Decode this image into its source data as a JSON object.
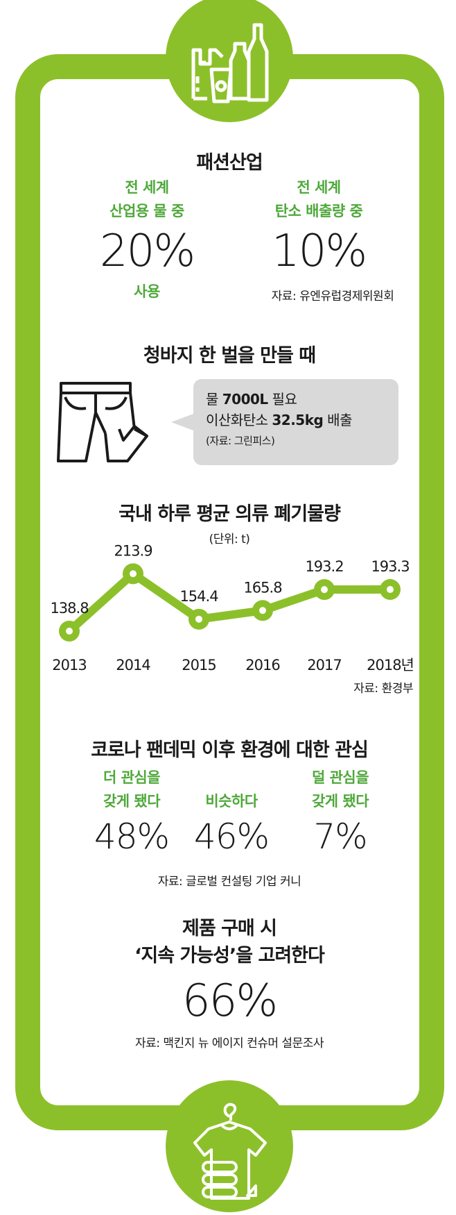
{
  "colors": {
    "accent": "#8cc02a",
    "green_text": "#4ea83a",
    "callout_bg": "#d9d9d9"
  },
  "icons": {
    "top": "plastic-bag-bottles-cup-icon",
    "jeans": "jeans-icon",
    "bottom": "shirt-hanger-folded-clothes-icon"
  },
  "fashion": {
    "title": "패션산업",
    "left": {
      "line1": "전 세계",
      "line2": "산업용 물 중",
      "value": "20%",
      "suffix": "사용"
    },
    "right": {
      "line1": "전 세계",
      "line2": "탄소 배출량 중",
      "value": "10%"
    },
    "source": "자료: 유엔유럽경제위원회"
  },
  "jeans": {
    "title": "청바지 한 벌을 만들 때",
    "water_prefix": "물 ",
    "water_value": "7000L",
    "water_suffix": " 필요",
    "co2_prefix": "이산화탄소 ",
    "co2_value": "32.5kg",
    "co2_suffix": " 배출",
    "source": "(자료: 그린피스)"
  },
  "chart_data": {
    "type": "line",
    "title": "국내 하루 평균 의류 폐기물량",
    "unit": "(단위: t)",
    "categories": [
      "2013",
      "2014",
      "2015",
      "2016",
      "2017",
      "2018년"
    ],
    "values": [
      138.8,
      213.9,
      154.4,
      165.8,
      193.2,
      193.3
    ],
    "value_labels": [
      "138.8",
      "213.9",
      "154.4",
      "165.8",
      "193.2",
      "193.3"
    ],
    "grid": false,
    "source": "자료: 환경부"
  },
  "corona": {
    "title": "코로나 팬데믹 이후 환경에 대한 관심",
    "items": [
      {
        "line1": "더 관심을",
        "line2": "갖게 됐다",
        "value": "48%"
      },
      {
        "line1": "",
        "line2": "비슷하다",
        "value": "46%"
      },
      {
        "line1": "덜 관심을",
        "line2": "갖게 됐다",
        "value": "7%"
      }
    ],
    "source": "자료: 글로벌 컨설팅 기업 커니"
  },
  "sustain": {
    "line1": "제품 구매 시",
    "line2": "‘지속 가능성’을 고려한다",
    "value": "66%",
    "source": "자료: 맥킨지 뉴 에이지 컨슈머 설문조사"
  }
}
